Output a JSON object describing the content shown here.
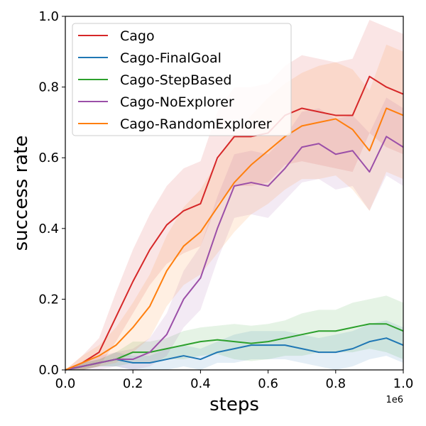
{
  "chart_data": {
    "type": "line",
    "title": "",
    "xlabel": "steps",
    "ylabel": "success rate",
    "x_offset_label": "1e6",
    "xlim": [
      0.0,
      1.0
    ],
    "ylim": [
      0.0,
      1.0
    ],
    "x_ticks": [
      0.0,
      0.2,
      0.4,
      0.6,
      0.8,
      1.0
    ],
    "x_tick_labels": [
      "0.0",
      "0.2",
      "0.4",
      "0.6",
      "0.8",
      "1.0"
    ],
    "y_ticks": [
      0.0,
      0.2,
      0.4,
      0.6,
      0.8,
      1.0
    ],
    "y_tick_labels": [
      "0.0",
      "0.2",
      "0.4",
      "0.6",
      "0.8",
      "1.0"
    ],
    "grid": false,
    "legend_position": "top-left",
    "x": [
      0.0,
      0.05,
      0.1,
      0.15,
      0.2,
      0.25,
      0.3,
      0.35,
      0.4,
      0.45,
      0.5,
      0.55,
      0.6,
      0.65,
      0.7,
      0.75,
      0.8,
      0.85,
      0.9,
      0.95,
      1.0
    ],
    "series": [
      {
        "name": "Cago",
        "color": "#d62728",
        "values": [
          0.0,
          0.02,
          0.05,
          0.15,
          0.25,
          0.34,
          0.41,
          0.45,
          0.47,
          0.6,
          0.66,
          0.66,
          0.67,
          0.72,
          0.74,
          0.73,
          0.72,
          0.72,
          0.83,
          0.8,
          0.78
        ],
        "band": [
          0.0,
          0.02,
          0.04,
          0.07,
          0.09,
          0.1,
          0.11,
          0.12,
          0.12,
          0.13,
          0.14,
          0.14,
          0.14,
          0.14,
          0.15,
          0.15,
          0.15,
          0.16,
          0.16,
          0.17,
          0.17
        ]
      },
      {
        "name": "Cago-FinalGoal",
        "color": "#1f77b4",
        "values": [
          0.0,
          0.01,
          0.02,
          0.03,
          0.02,
          0.02,
          0.03,
          0.04,
          0.03,
          0.05,
          0.06,
          0.07,
          0.07,
          0.07,
          0.06,
          0.05,
          0.05,
          0.06,
          0.08,
          0.09,
          0.07
        ],
        "band": [
          0.0,
          0.01,
          0.01,
          0.02,
          0.02,
          0.02,
          0.03,
          0.03,
          0.03,
          0.03,
          0.04,
          0.04,
          0.04,
          0.04,
          0.04,
          0.04,
          0.05,
          0.05,
          0.05,
          0.05,
          0.05
        ]
      },
      {
        "name": "Cago-StepBased",
        "color": "#2ca02c",
        "values": [
          0.0,
          0.01,
          0.02,
          0.03,
          0.05,
          0.05,
          0.06,
          0.07,
          0.08,
          0.085,
          0.08,
          0.075,
          0.08,
          0.09,
          0.1,
          0.11,
          0.11,
          0.12,
          0.13,
          0.13,
          0.11
        ],
        "band": [
          0.0,
          0.01,
          0.01,
          0.02,
          0.03,
          0.03,
          0.03,
          0.04,
          0.04,
          0.04,
          0.05,
          0.05,
          0.05,
          0.05,
          0.06,
          0.06,
          0.06,
          0.07,
          0.07,
          0.08,
          0.08
        ]
      },
      {
        "name": "Cago-NoExplorer",
        "color": "#9b4fa8",
        "values": [
          0.0,
          0.01,
          0.02,
          0.03,
          0.03,
          0.05,
          0.1,
          0.2,
          0.26,
          0.4,
          0.52,
          0.53,
          0.52,
          0.57,
          0.63,
          0.64,
          0.61,
          0.62,
          0.56,
          0.66,
          0.63
        ],
        "band": [
          0.0,
          0.01,
          0.02,
          0.02,
          0.03,
          0.04,
          0.06,
          0.08,
          0.09,
          0.09,
          0.09,
          0.09,
          0.09,
          0.09,
          0.1,
          0.1,
          0.1,
          0.1,
          0.11,
          0.11,
          0.11
        ]
      },
      {
        "name": "Cago-RandomExplorer",
        "color": "#ff7f0e",
        "values": [
          0.0,
          0.02,
          0.04,
          0.07,
          0.12,
          0.18,
          0.28,
          0.35,
          0.39,
          0.46,
          0.53,
          0.58,
          0.62,
          0.66,
          0.69,
          0.7,
          0.71,
          0.68,
          0.62,
          0.74,
          0.72
        ],
        "band": [
          0.0,
          0.02,
          0.03,
          0.05,
          0.07,
          0.09,
          0.1,
          0.11,
          0.12,
          0.13,
          0.14,
          0.14,
          0.15,
          0.15,
          0.15,
          0.16,
          0.16,
          0.17,
          0.17,
          0.18,
          0.18
        ]
      }
    ]
  }
}
